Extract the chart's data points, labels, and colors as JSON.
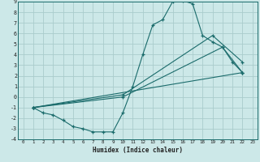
{
  "xlabel": "Humidex (Indice chaleur)",
  "bg_color": "#cce8e8",
  "grid_color": "#aacccc",
  "line_color": "#1a6b6b",
  "xlim": [
    -0.5,
    23.5
  ],
  "ylim": [
    -4,
    9
  ],
  "xticks": [
    0,
    1,
    2,
    3,
    4,
    5,
    6,
    7,
    8,
    9,
    10,
    11,
    12,
    13,
    14,
    15,
    16,
    17,
    18,
    19,
    20,
    21,
    22,
    23
  ],
  "yticks": [
    -4,
    -3,
    -2,
    -1,
    0,
    1,
    2,
    3,
    4,
    5,
    6,
    7,
    8,
    9
  ],
  "series1_x": [
    1,
    2,
    3,
    4,
    5,
    6,
    7,
    8,
    9,
    10,
    11,
    12,
    13,
    14,
    15,
    16,
    17,
    18,
    19,
    20,
    21,
    22
  ],
  "series1_y": [
    -1,
    -1.5,
    -1.7,
    -2.2,
    -2.8,
    -3.0,
    -3.3,
    -3.3,
    -3.3,
    -1.5,
    1.0,
    4.0,
    6.8,
    7.3,
    9.0,
    9.1,
    8.8,
    5.8,
    5.2,
    4.7,
    3.3,
    2.3
  ],
  "series2_x": [
    1,
    22
  ],
  "series2_y": [
    -1,
    2.3
  ],
  "series3_x": [
    1,
    10,
    19,
    22
  ],
  "series3_y": [
    -1,
    0.2,
    5.8,
    3.3
  ],
  "series4_x": [
    1,
    10,
    20,
    22
  ],
  "series4_y": [
    -1,
    0.0,
    4.7,
    2.3
  ]
}
